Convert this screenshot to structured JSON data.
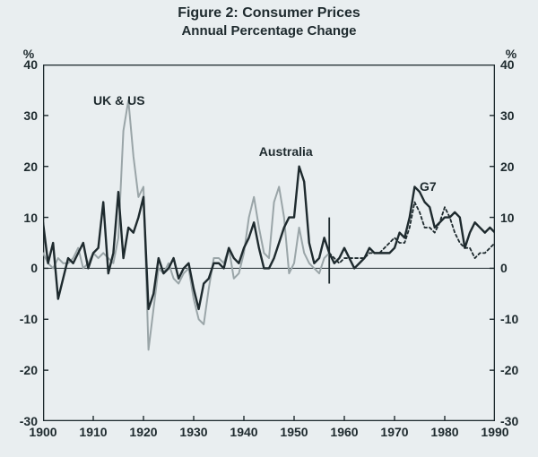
{
  "chart": {
    "type": "line",
    "title": "Figure 2: Consumer Prices",
    "subtitle": "Annual Percentage Change",
    "title_fontsize": 16,
    "subtitle_fontsize": 15,
    "background_color": "#e9eef0",
    "frame_color": "#1e2a2e",
    "zero_line_color": "#1e2a2e",
    "xlim": [
      1900,
      1990
    ],
    "ylim": [
      -30,
      40
    ],
    "xtick_step": 10,
    "ytick_step": 10,
    "x_ticks": [
      1900,
      1910,
      1920,
      1930,
      1940,
      1950,
      1960,
      1970,
      1980,
      1990
    ],
    "y_ticks": [
      -30,
      -20,
      -10,
      0,
      10,
      20,
      30,
      40
    ],
    "y_unit": "%",
    "y_unit_left": "%",
    "y_unit_right": "%",
    "axis_label_fontsize": 14,
    "tick_font_weight": "bold",
    "tick_len_major": 6,
    "vertical_marker_year": 1957,
    "vertical_marker_yrange": [
      -3,
      10
    ],
    "series": {
      "uk_us": {
        "label": "UK & US",
        "color": "#9aa5a8",
        "width": 2,
        "dash": "",
        "label_x": 1910,
        "label_y": 33,
        "x": [
          1900,
          1901,
          1902,
          1903,
          1904,
          1905,
          1906,
          1907,
          1908,
          1909,
          1910,
          1911,
          1912,
          1913,
          1914,
          1915,
          1916,
          1917,
          1918,
          1919,
          1920,
          1921,
          1922,
          1923,
          1924,
          1925,
          1926,
          1927,
          1928,
          1929,
          1930,
          1931,
          1932,
          1933,
          1934,
          1935,
          1936,
          1937,
          1938,
          1939,
          1940,
          1941,
          1942,
          1943,
          1944,
          1945,
          1946,
          1947,
          1948,
          1949,
          1950,
          1951,
          1952,
          1953,
          1954,
          1955,
          1956,
          1957
        ],
        "y": [
          3,
          1,
          0,
          2,
          1,
          1,
          2,
          4,
          0,
          1,
          3,
          2,
          3,
          2,
          1,
          6,
          27,
          33,
          22,
          14,
          16,
          -16,
          -8,
          0,
          -1,
          1,
          -2,
          -3,
          -1,
          0,
          -6,
          -10,
          -11,
          -4,
          2,
          2,
          1,
          4,
          -2,
          -1,
          3,
          10,
          14,
          8,
          3,
          2,
          13,
          16,
          10,
          -1,
          1,
          8,
          3,
          1,
          0,
          -1,
          2,
          3
        ]
      },
      "australia": {
        "label": "Australia",
        "color": "#1e2a2e",
        "width": 2.4,
        "dash": "",
        "label_x": 1943,
        "label_y": 23,
        "x": [
          1900,
          1901,
          1902,
          1903,
          1904,
          1905,
          1906,
          1907,
          1908,
          1909,
          1910,
          1911,
          1912,
          1913,
          1914,
          1915,
          1916,
          1917,
          1918,
          1919,
          1920,
          1921,
          1922,
          1923,
          1924,
          1925,
          1926,
          1927,
          1928,
          1929,
          1930,
          1931,
          1932,
          1933,
          1934,
          1935,
          1936,
          1937,
          1938,
          1939,
          1940,
          1941,
          1942,
          1943,
          1944,
          1945,
          1946,
          1947,
          1948,
          1949,
          1950,
          1951,
          1952,
          1953,
          1954,
          1955,
          1956,
          1957,
          1958,
          1959,
          1960,
          1961,
          1962,
          1963,
          1964,
          1965,
          1966,
          1967,
          1968,
          1969,
          1970,
          1971,
          1972,
          1973,
          1974,
          1975,
          1976,
          1977,
          1978,
          1979,
          1980,
          1981,
          1982,
          1983,
          1984,
          1985,
          1986,
          1987,
          1988,
          1989,
          1990
        ],
        "y": [
          9,
          1,
          5,
          -6,
          -2,
          2,
          1,
          3,
          5,
          0,
          3,
          4,
          13,
          -1,
          3,
          15,
          2,
          8,
          7,
          10,
          14,
          -8,
          -5,
          2,
          -1,
          0,
          2,
          -2,
          0,
          1,
          -4,
          -8,
          -3,
          -2,
          1,
          1,
          0,
          4,
          2,
          1,
          4,
          6,
          9,
          4,
          0,
          0,
          2,
          5,
          8,
          10,
          10,
          20,
          17,
          5,
          1,
          2,
          6,
          3,
          1,
          2,
          4,
          2,
          0,
          1,
          2,
          4,
          3,
          3,
          3,
          3,
          4,
          7,
          6,
          10,
          16,
          15,
          13,
          12,
          8,
          9,
          10,
          10,
          11,
          10,
          4,
          7,
          9,
          8,
          7,
          8,
          7
        ]
      },
      "g7": {
        "label": "G7",
        "color": "#1e2a2e",
        "width": 1.8,
        "dash": "3 3",
        "label_x": 1975,
        "label_y": 16,
        "x": [
          1957,
          1958,
          1959,
          1960,
          1961,
          1962,
          1963,
          1964,
          1965,
          1966,
          1967,
          1968,
          1969,
          1970,
          1971,
          1972,
          1973,
          1974,
          1975,
          1976,
          1977,
          1978,
          1979,
          1980,
          1981,
          1982,
          1983,
          1984,
          1985,
          1986,
          1987,
          1988,
          1989,
          1990
        ],
        "y": [
          3,
          2,
          1,
          2,
          2,
          2,
          2,
          2,
          3,
          3,
          3,
          4,
          5,
          6,
          5,
          5,
          8,
          13,
          11,
          8,
          8,
          7,
          9,
          12,
          10,
          7,
          5,
          4,
          4,
          2,
          3,
          3,
          4,
          5
        ]
      }
    }
  }
}
